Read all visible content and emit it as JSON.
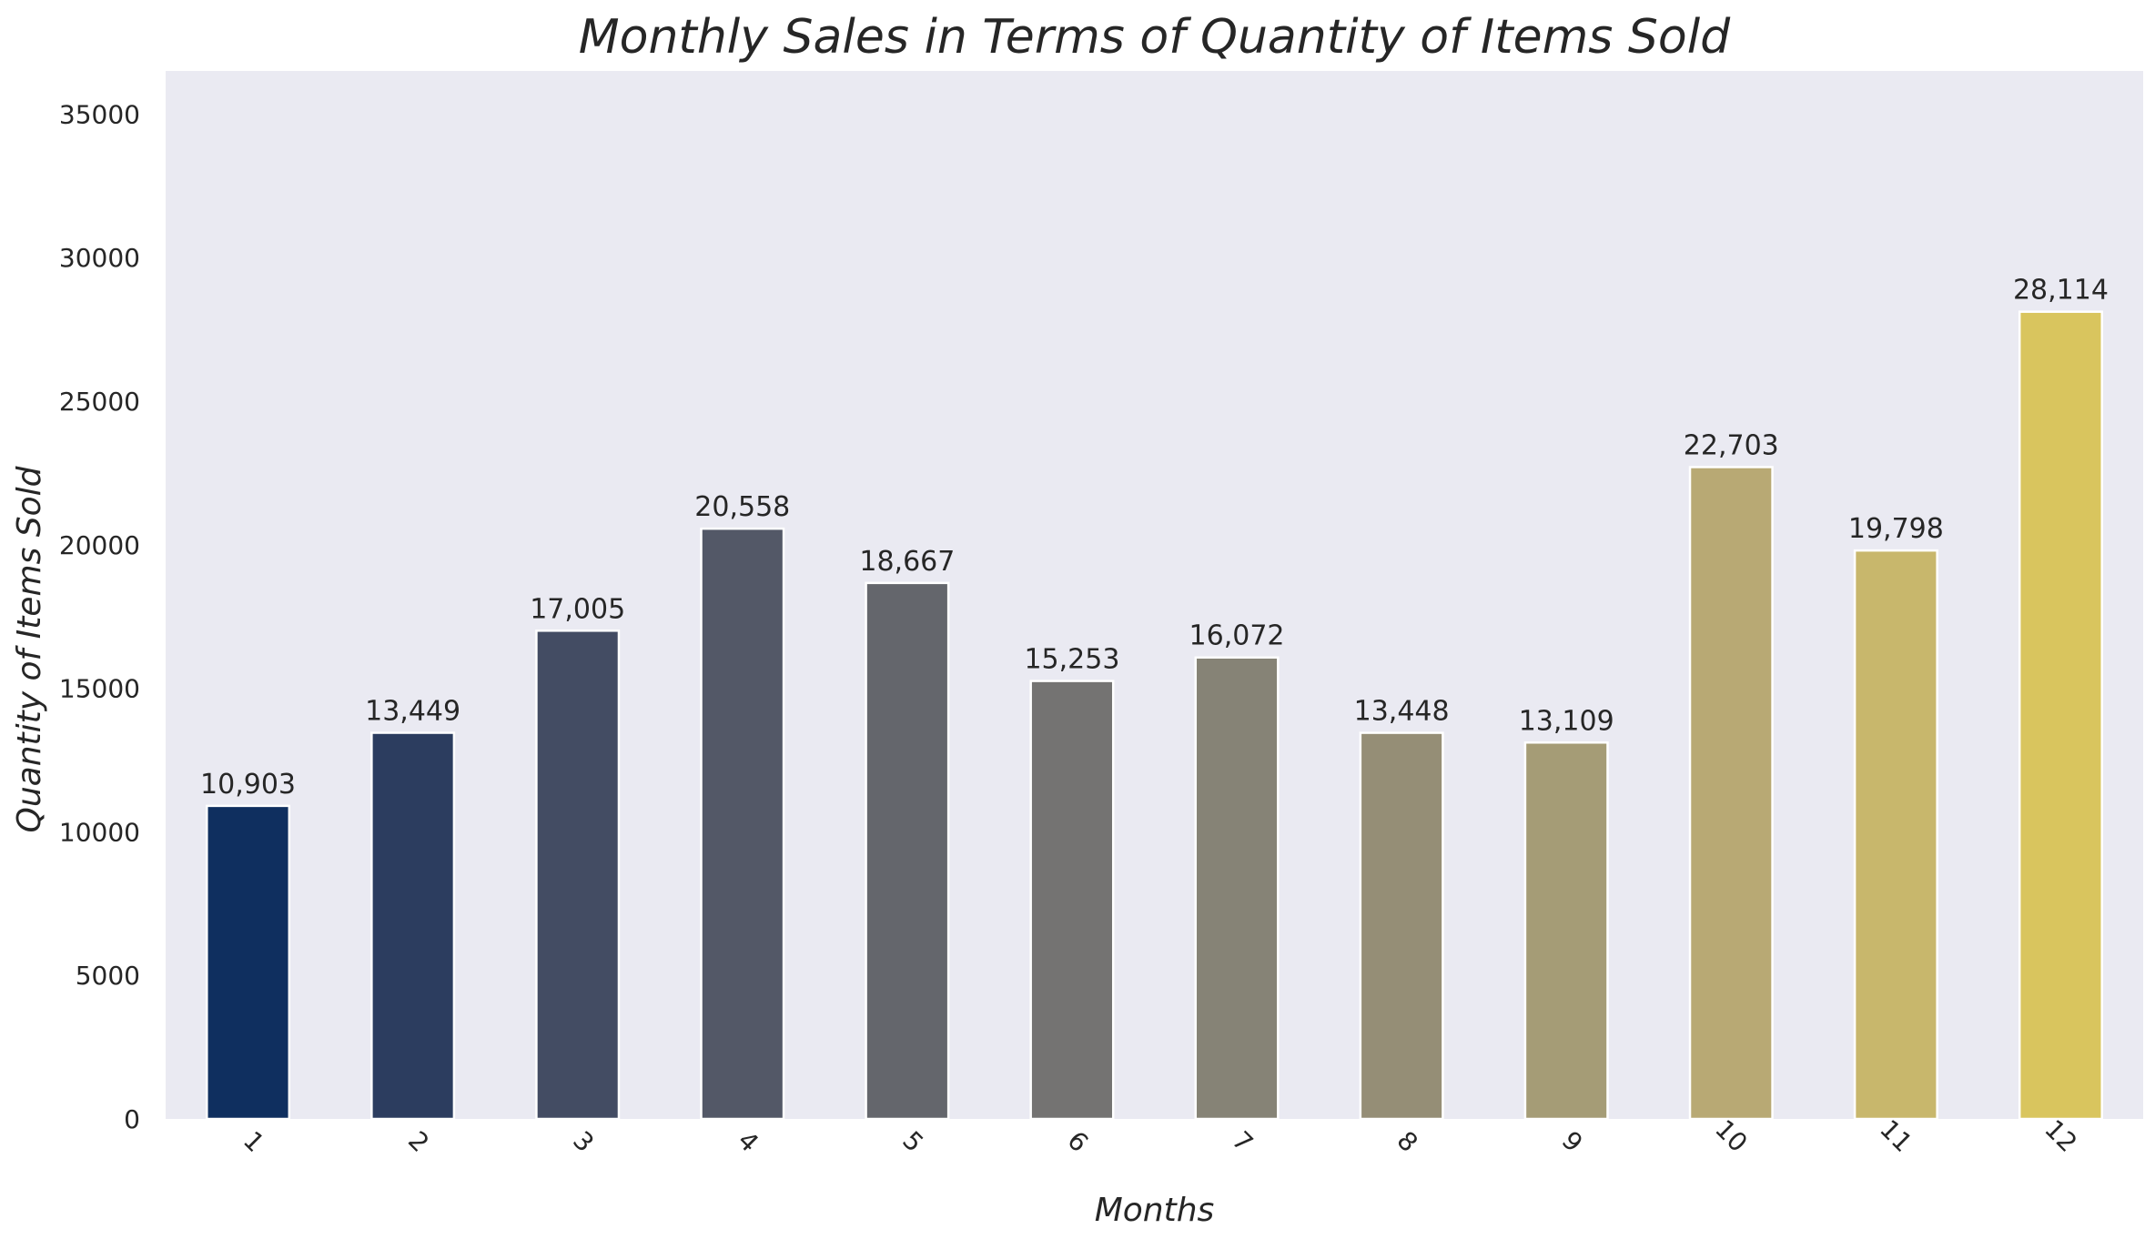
{
  "chart_data": {
    "type": "bar",
    "title": "Monthly Sales in Terms of Quantity of Items Sold",
    "xlabel": "Months",
    "ylabel": "Quantity of Items Sold",
    "categories": [
      "1",
      "2",
      "3",
      "4",
      "5",
      "6",
      "7",
      "8",
      "9",
      "10",
      "11",
      "12"
    ],
    "values": [
      10903,
      13449,
      17005,
      20558,
      18667,
      15253,
      16072,
      13448,
      13109,
      22703,
      19798,
      28114
    ],
    "value_labels": [
      "10,903",
      "13,449",
      "17,005",
      "20,558",
      "18,667",
      "15,253",
      "16,072",
      "13,448",
      "13,109",
      "22,703",
      "19,798",
      "28,114"
    ],
    "ylim": [
      0,
      36500
    ],
    "yticks": [
      0,
      5000,
      10000,
      15000,
      20000,
      25000,
      30000,
      35000
    ],
    "grid": false,
    "x_tick_rotation_deg": 45,
    "colors": {
      "background": "#eaeaf2",
      "bar_edge": "#ffffff",
      "bars": [
        "#0f2f5f",
        "#2c3d5f",
        "#434c63",
        "#535867",
        "#64666c",
        "#747372",
        "#868376",
        "#958e76",
        "#a59c76",
        "#b8a974",
        "#c8b76c",
        "#d9c55e"
      ]
    }
  }
}
